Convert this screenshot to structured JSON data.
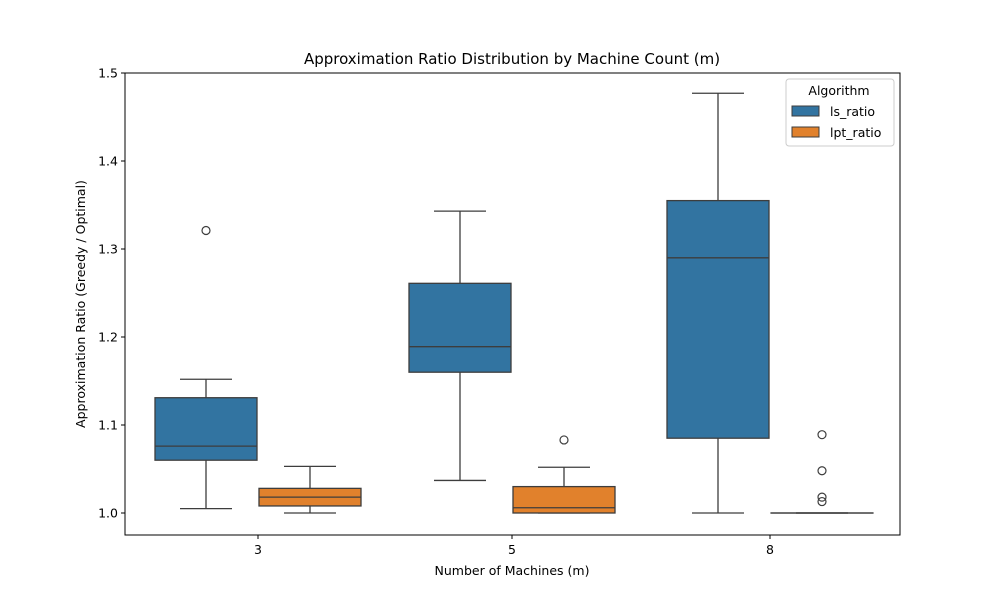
{
  "chart_data": {
    "type": "boxplot",
    "title": "Approximation Ratio Distribution by Machine Count (m)",
    "xlabel": "Number of Machines (m)",
    "ylabel": "Approximation Ratio (Greedy / Optimal)",
    "ylim": [
      0.975,
      1.5
    ],
    "yticks": [
      1.0,
      1.1,
      1.2,
      1.3,
      1.4,
      1.5
    ],
    "ytick_labels": [
      "1.0",
      "1.1",
      "1.2",
      "1.3",
      "1.4",
      "1.5"
    ],
    "categories": [
      "3",
      "5",
      "8"
    ],
    "grid": false,
    "legend": {
      "title": "Algorithm",
      "placement": "top-right",
      "entries": [
        "ls_ratio",
        "lpt_ratio"
      ]
    },
    "series": [
      {
        "name": "ls_ratio",
        "color": "#3274a1",
        "boxes": [
          {
            "whisker_low": 1.005,
            "q1": 1.06,
            "median": 1.076,
            "q3": 1.131,
            "whisker_high": 1.152,
            "outliers": [
              1.321
            ]
          },
          {
            "whisker_low": 1.037,
            "q1": 1.16,
            "median": 1.189,
            "q3": 1.261,
            "whisker_high": 1.343,
            "outliers": []
          },
          {
            "whisker_low": 1.0,
            "q1": 1.085,
            "median": 1.29,
            "q3": 1.355,
            "whisker_high": 1.477,
            "outliers": []
          }
        ]
      },
      {
        "name": "lpt_ratio",
        "color": "#e1812c",
        "boxes": [
          {
            "whisker_low": 1.0,
            "q1": 1.008,
            "median": 1.018,
            "q3": 1.028,
            "whisker_high": 1.053,
            "outliers": []
          },
          {
            "whisker_low": 1.0,
            "q1": 1.0,
            "median": 1.006,
            "q3": 1.03,
            "whisker_high": 1.052,
            "outliers": [
              1.083
            ]
          },
          {
            "whisker_low": 1.0,
            "q1": 1.0,
            "median": 1.0,
            "q3": 1.0,
            "whisker_high": 1.0,
            "outliers": [
              1.089,
              1.048,
              1.018,
              1.013
            ]
          }
        ]
      }
    ]
  }
}
